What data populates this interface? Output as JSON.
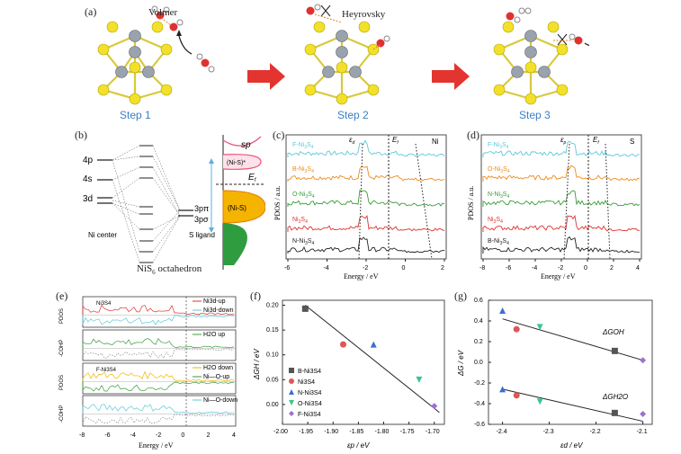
{
  "panel_a": {
    "label": "(a)",
    "steps": [
      {
        "title": "Step 1",
        "annotation": "Volmer"
      },
      {
        "title": "Step 2",
        "annotation": "Heyrovsky"
      },
      {
        "title": "Step 3",
        "annotation": ""
      }
    ],
    "arrow_color": "#e3342f"
  },
  "panel_b": {
    "label": "(b)",
    "left_levels": [
      "4p",
      "4s",
      "3d"
    ],
    "left_title": "Ni center",
    "right_levels": [
      "3pπ",
      "3pσ"
    ],
    "right_title": "S ligand",
    "caption": "NiS",
    "caption_sub": "6",
    "caption_tail": " octahedron",
    "dos_labels": [
      "sp",
      "(Ni-S)*",
      "(Ni-S)",
      "E"
    ],
    "ef_sub": "f",
    "colors": {
      "antibonding": "#e8577a",
      "bonding_fill": "#f5b400",
      "bottom_fill": "#2e9c3f"
    }
  },
  "panel_c": {
    "label": "(c)",
    "ylabel": "PDOS / a.u.",
    "xlabel": "Energy / eV",
    "corner": "Ni",
    "markers": [
      "ε",
      "E"
    ],
    "marker_subs": [
      "d",
      "f"
    ],
    "xticks": [
      "-6",
      "-4",
      "-2",
      "0",
      "2"
    ],
    "series": [
      {
        "name": "F-Ni",
        "sub": "3",
        "tail": "S",
        "sub2": "4",
        "color": "#5ec8d8"
      },
      {
        "name": "B-Ni",
        "sub": "3",
        "tail": "S",
        "sub2": "4",
        "color": "#f08a1c"
      },
      {
        "name": "O-Ni",
        "sub": "3",
        "tail": "S",
        "sub2": "4",
        "color": "#3a9b3a"
      },
      {
        "name": "Ni",
        "sub": "3",
        "tail": "S",
        "sub2": "4",
        "color": "#e03131"
      },
      {
        "name": "N-Ni",
        "sub": "3",
        "tail": "S",
        "sub2": "4",
        "color": "#222222"
      }
    ]
  },
  "panel_d": {
    "label": "(d)",
    "ylabel": "PDOS / a.u.",
    "xlabel": "Energy / eV",
    "corner": "S",
    "markers": [
      "ε",
      "E"
    ],
    "marker_subs": [
      "p",
      "f"
    ],
    "xticks": [
      "-8",
      "-6",
      "-4",
      "-2",
      "0",
      "2",
      "4"
    ],
    "series": [
      {
        "name": "F-Ni",
        "sub": "3",
        "tail": "S",
        "sub2": "4",
        "color": "#5ec8d8"
      },
      {
        "name": "O-Ni",
        "sub": "3",
        "tail": "S",
        "sub2": "4",
        "color": "#f08a1c"
      },
      {
        "name": "N-Ni",
        "sub": "3",
        "tail": "S",
        "sub2": "4",
        "color": "#3a9b3a"
      },
      {
        "name": "Ni",
        "sub": "3",
        "tail": "S",
        "sub2": "4",
        "color": "#e03131"
      },
      {
        "name": "B-Ni",
        "sub": "3",
        "tail": "S",
        "sub2": "4",
        "color": "#222222"
      }
    ]
  },
  "panel_e": {
    "label": "(e)",
    "ylabels": [
      "PDOS",
      "-COHP",
      "PDOS",
      "-COHP"
    ],
    "xlabel": "Energy / eV",
    "xticks": [
      "-8",
      "-6",
      "-4",
      "-2",
      "0",
      "2",
      "4"
    ],
    "subplot_titles": [
      "Ni3S4",
      "",
      "F-Ni3S4",
      ""
    ],
    "legends": [
      [
        {
          "text": "Ni3d-up",
          "color": "#e03131"
        },
        {
          "text": "Ni3d-down",
          "color": "#5ec8d8"
        }
      ],
      [
        {
          "text": "H2O up",
          "color": "#3a9b3a"
        }
      ],
      [
        {
          "text": "H2O down",
          "color": "#f5b400"
        },
        {
          "text": "Ni—O-up",
          "color": "#3a9b3a"
        }
      ],
      [
        {
          "text": "Ni—O-down",
          "color": "#5ec8d8"
        }
      ]
    ],
    "yticks": [
      "1.5",
      "1.0",
      "0.5",
      "0",
      "-0.5"
    ]
  },
  "chart_data": [
    {
      "type": "scatter",
      "panel": "(f)",
      "xlabel": "εp / eV",
      "ylabel": "ΔGH / eV",
      "xlim": [
        -2.0,
        -1.68
      ],
      "ylim": [
        -0.04,
        0.21
      ],
      "xticks": [
        -2.0,
        -1.95,
        -1.9,
        -1.85,
        -1.8,
        -1.75,
        -1.7
      ],
      "yticks": [
        0.0,
        0.05,
        0.1,
        0.15,
        0.2
      ],
      "series": [
        {
          "name": "B-Ni3S4",
          "marker": "square",
          "color": "#555555",
          "x": [
            -1.955
          ],
          "y": [
            0.193
          ]
        },
        {
          "name": "Ni3S4",
          "marker": "circle",
          "color": "#e05555",
          "x": [
            -1.88
          ],
          "y": [
            0.121
          ]
        },
        {
          "name": "N-Ni3S4",
          "marker": "triangle-up",
          "color": "#3b6fd1",
          "x": [
            -1.82
          ],
          "y": [
            0.121
          ]
        },
        {
          "name": "O-Ni3S4",
          "marker": "triangle-down",
          "color": "#3cc48f",
          "x": [
            -1.73
          ],
          "y": [
            0.05
          ]
        },
        {
          "name": "F-Ni3S4",
          "marker": "diamond",
          "color": "#a070d0",
          "x": [
            -1.7
          ],
          "y": [
            -0.003
          ]
        }
      ],
      "fit_line": {
        "x": [
          -1.955,
          -1.69
        ],
        "y": [
          0.2,
          -0.016
        ]
      }
    },
    {
      "type": "scatter",
      "panel": "(g)",
      "xlabel": "εd / eV",
      "ylabel": "ΔG / eV",
      "xlim": [
        -2.43,
        -2.08
      ],
      "ylim": [
        -0.6,
        0.6
      ],
      "xticks": [
        -2.4,
        -2.3,
        -2.2,
        -2.1
      ],
      "yticks": [
        -0.6,
        -0.4,
        -0.2,
        0.0,
        0.2,
        0.4,
        0.6
      ],
      "series": [
        {
          "name": "ΔGOH",
          "points": [
            {
              "x": -2.4,
              "y": 0.5,
              "marker": "triangle-up",
              "color": "#3b6fd1"
            },
            {
              "x": -2.37,
              "y": 0.32,
              "marker": "circle",
              "color": "#e05555"
            },
            {
              "x": -2.32,
              "y": 0.34,
              "marker": "triangle-down",
              "color": "#3cc48f"
            },
            {
              "x": -2.16,
              "y": 0.11,
              "marker": "square",
              "color": "#555555"
            },
            {
              "x": -2.1,
              "y": 0.02,
              "marker": "diamond",
              "color": "#a070d0"
            }
          ],
          "fit_line": {
            "x": [
              -2.4,
              -2.1
            ],
            "y": [
              0.42,
              0.02
            ]
          }
        },
        {
          "name": "ΔGH2O",
          "points": [
            {
              "x": -2.4,
              "y": -0.26,
              "marker": "triangle-up",
              "color": "#3b6fd1"
            },
            {
              "x": -2.37,
              "y": -0.32,
              "marker": "circle",
              "color": "#e05555"
            },
            {
              "x": -2.32,
              "y": -0.38,
              "marker": "triangle-down",
              "color": "#3cc48f"
            },
            {
              "x": -2.16,
              "y": -0.49,
              "marker": "square",
              "color": "#555555"
            },
            {
              "x": -2.1,
              "y": -0.5,
              "marker": "diamond",
              "color": "#a070d0"
            }
          ],
          "fit_line": {
            "x": [
              -2.4,
              -2.1
            ],
            "y": [
              -0.26,
              -0.57
            ]
          }
        }
      ]
    }
  ]
}
